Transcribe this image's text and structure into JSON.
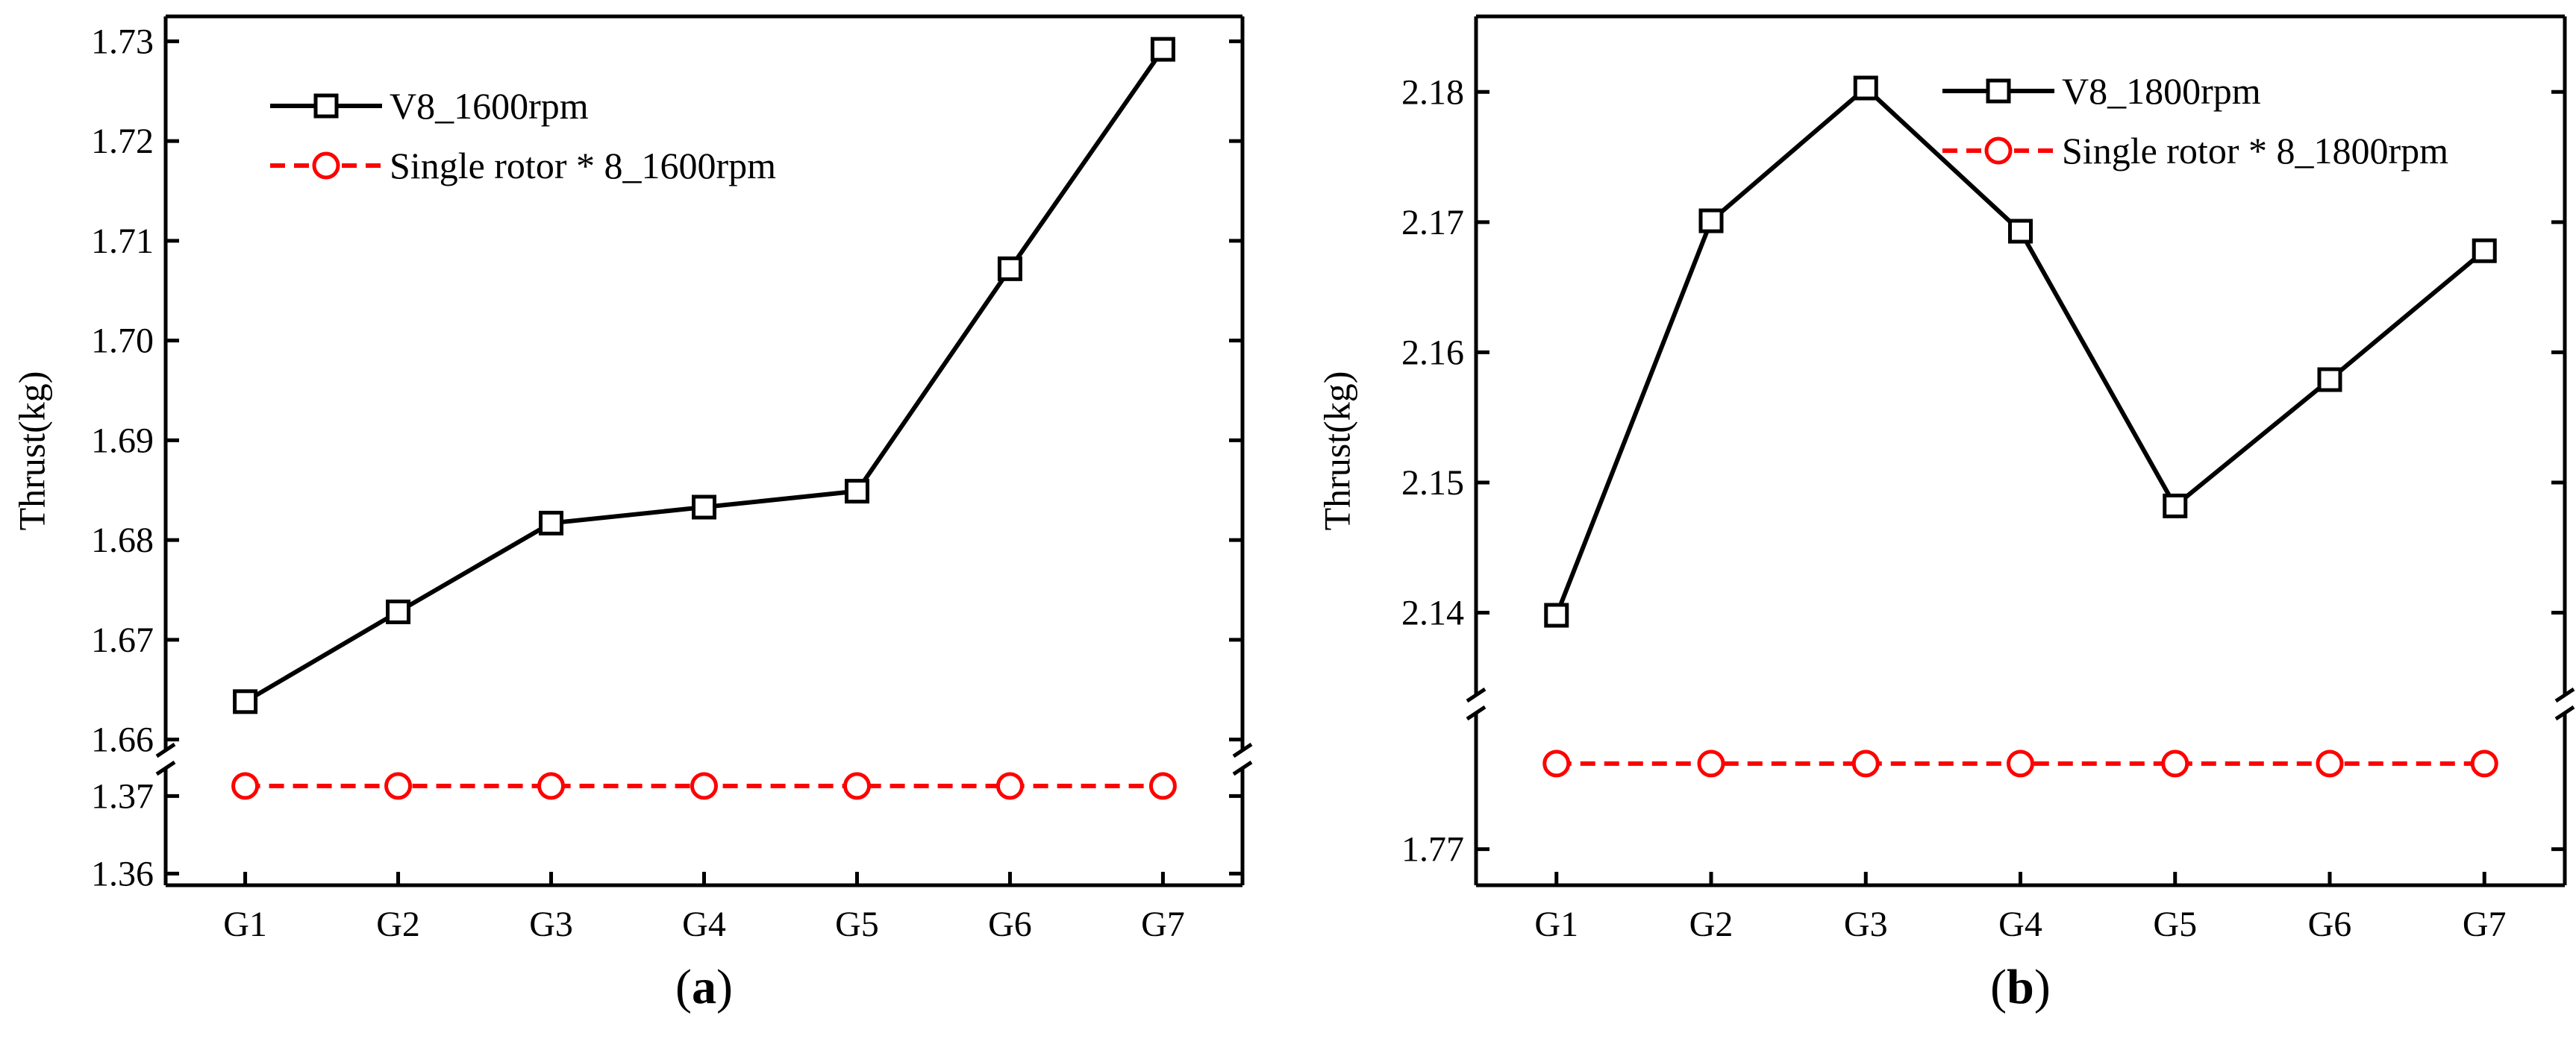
{
  "chart_data": [
    {
      "type": "line",
      "panel_label": "a",
      "x": [
        "G1",
        "G2",
        "G3",
        "G4",
        "G5",
        "G6",
        "G7"
      ],
      "ylabel": "Thrust(kg)",
      "axis_break": true,
      "upper_segment": {
        "ylim": [
          1.659,
          1.7325
        ],
        "ticks": [
          "1.66",
          "1.67",
          "1.68",
          "1.69",
          "1.70",
          "1.71",
          "1.72",
          "1.73"
        ],
        "tick_values": [
          1.66,
          1.67,
          1.68,
          1.69,
          1.7,
          1.71,
          1.72,
          1.73
        ]
      },
      "lower_segment": {
        "ylim": [
          1.3585,
          1.3735
        ],
        "ticks": [
          "1.36",
          "1.37"
        ],
        "tick_values": [
          1.36,
          1.37
        ]
      },
      "series": [
        {
          "name": "V8_1600rpm",
          "color": "#000000",
          "marker": "square",
          "line": "solid",
          "segment": "upper",
          "values": [
            1.6638,
            1.6728,
            1.6817,
            1.6833,
            1.6849,
            1.7072,
            1.7292
          ]
        },
        {
          "name": "Single rotor * 8_1600rpm",
          "color": "#ff0000",
          "marker": "circle",
          "line": "dashed",
          "segment": "lower",
          "values": [
            1.3713,
            1.3713,
            1.3713,
            1.3713,
            1.3713,
            1.3713,
            1.3713
          ]
        }
      ],
      "legend_position": "top-left"
    },
    {
      "type": "line",
      "panel_label": "b",
      "x": [
        "G1",
        "G2",
        "G3",
        "G4",
        "G5",
        "G6",
        "G7"
      ],
      "ylabel": "Thrust(kg)",
      "axis_break": true,
      "upper_segment": {
        "ylim": [
          2.1335,
          2.1858
        ],
        "ticks": [
          "2.14",
          "2.15",
          "2.16",
          "2.17",
          "2.18"
        ],
        "tick_values": [
          2.14,
          2.15,
          2.16,
          2.17,
          2.18
        ]
      },
      "lower_segment": {
        "ylim": [
          1.763,
          1.797
        ],
        "ticks": [
          "1.77"
        ],
        "tick_values": [
          1.77
        ]
      },
      "series": [
        {
          "name": "V8_1800rpm",
          "color": "#000000",
          "marker": "square",
          "line": "solid",
          "segment": "upper",
          "values": [
            2.1398,
            2.1701,
            2.1803,
            2.1693,
            2.1482,
            2.1579,
            2.1678
          ]
        },
        {
          "name": "Single rotor * 8_1800rpm",
          "color": "#ff0000",
          "marker": "circle",
          "line": "dashed",
          "segment": "lower",
          "values": [
            1.7866,
            1.7866,
            1.7866,
            1.7866,
            1.7866,
            1.7866,
            1.7866
          ]
        }
      ],
      "legend_position": "top-right"
    }
  ]
}
